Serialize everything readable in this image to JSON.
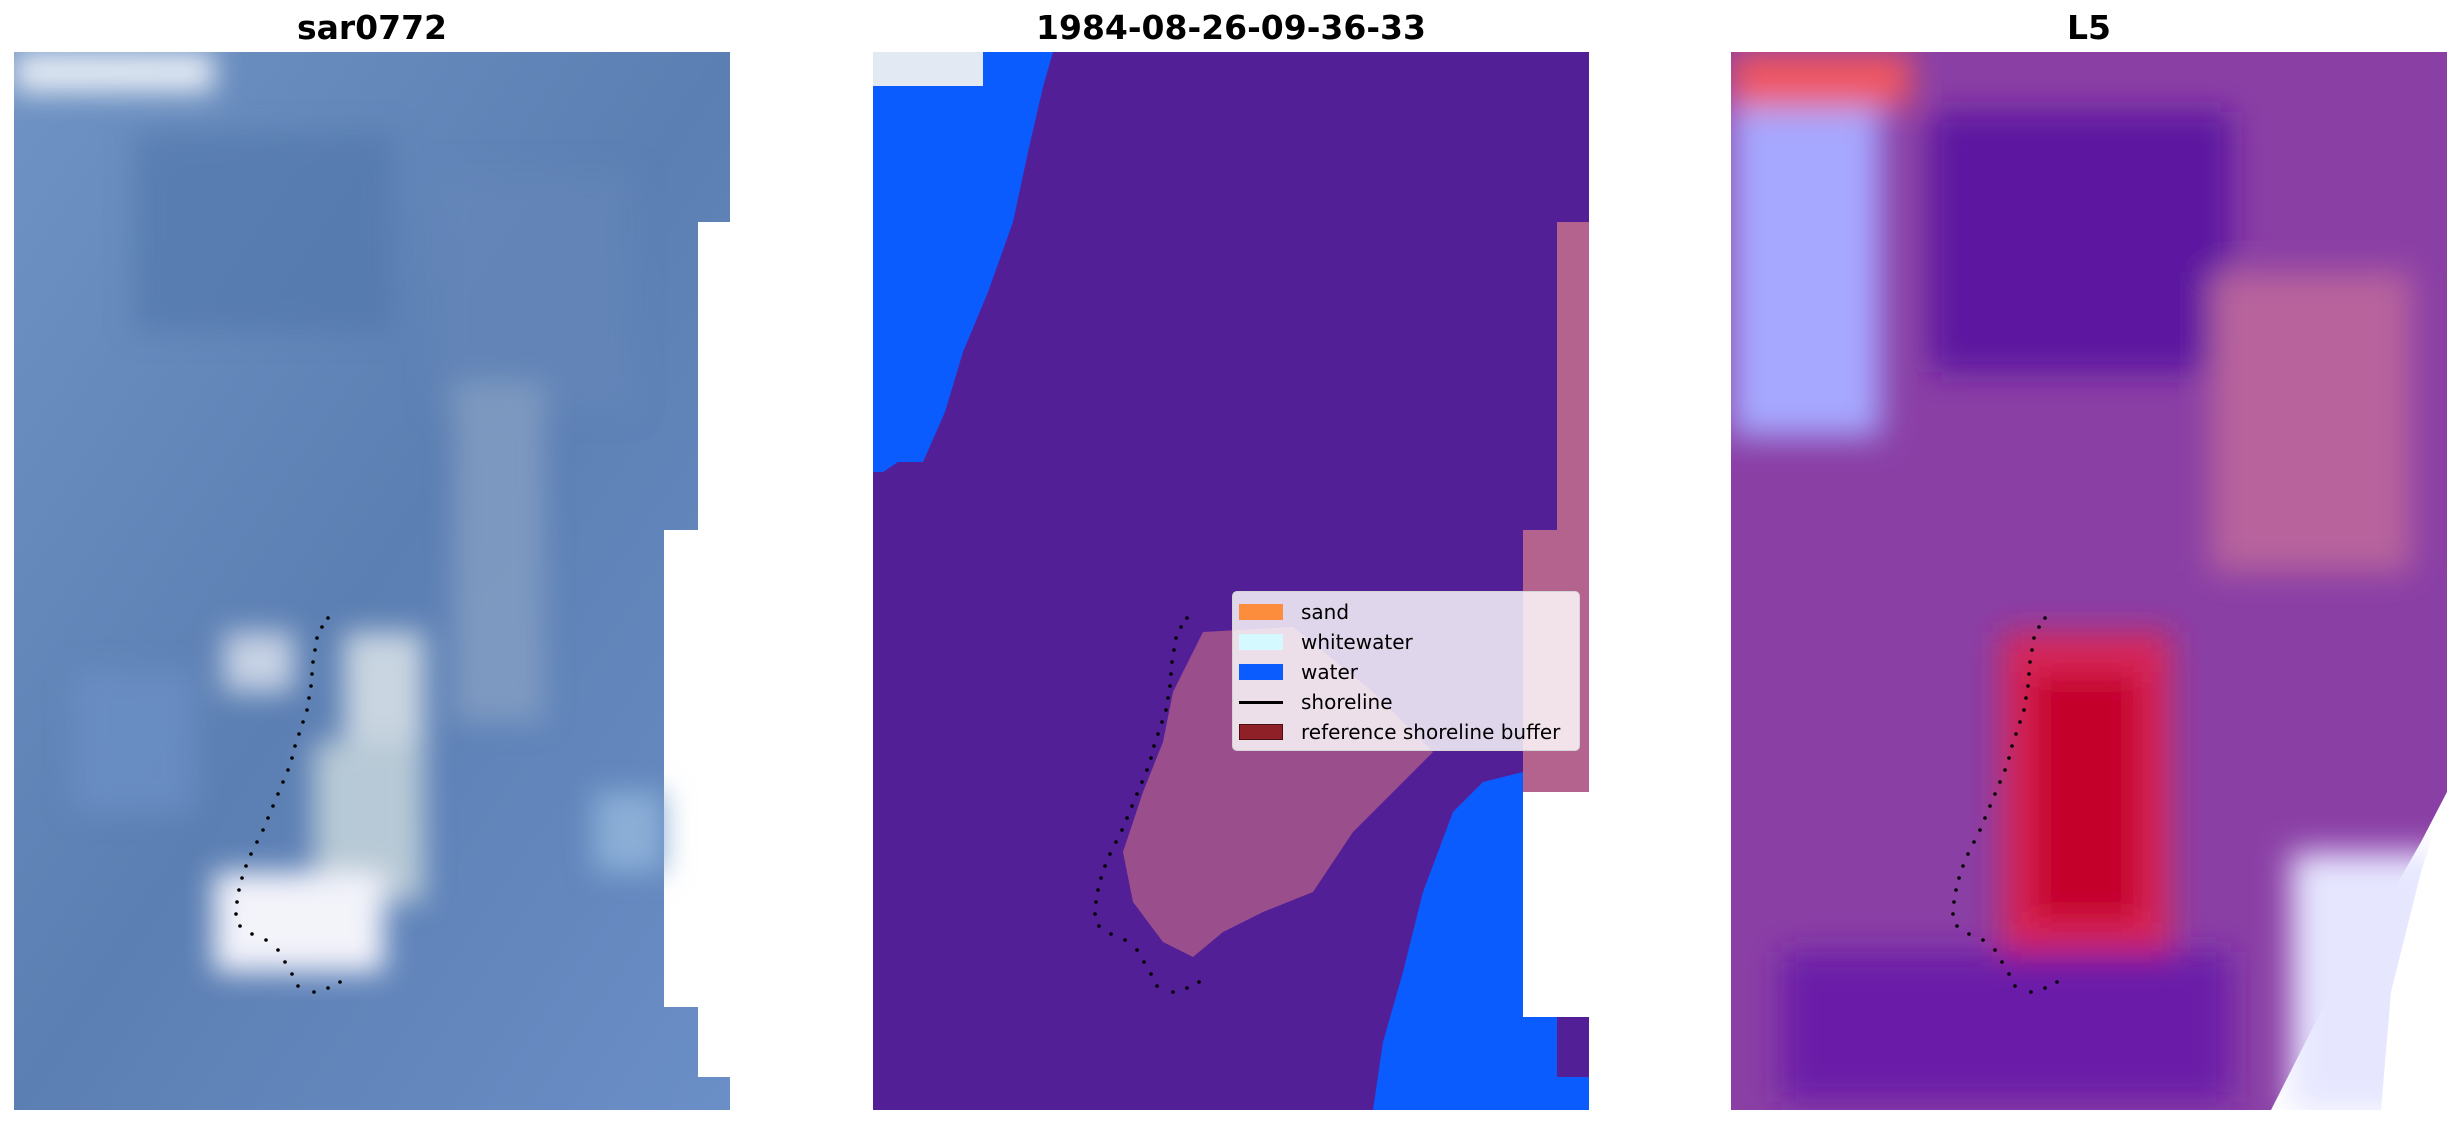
{
  "panels": [
    {
      "title": "sar0772"
    },
    {
      "title": "1984-08-26-09-36-33"
    },
    {
      "title": "L5"
    }
  ],
  "legend": {
    "items": [
      {
        "label": "sand",
        "color": "#fb8d3d"
      },
      {
        "label": "whitewater",
        "color": "#d4f9ff"
      },
      {
        "label": "water",
        "color": "#0a5cff"
      },
      {
        "label": "shoreline",
        "color": "#000000"
      },
      {
        "label": "reference shoreline buffer",
        "color": "#8f2027"
      }
    ]
  },
  "colors": {
    "sar_blue": "#5a7fb2",
    "class_purple": "#531f96",
    "class_pink": "#b4638f",
    "class_water": "#0a5cff",
    "l5_purple": "#7a2da0",
    "l5_red": "#c8002a"
  }
}
